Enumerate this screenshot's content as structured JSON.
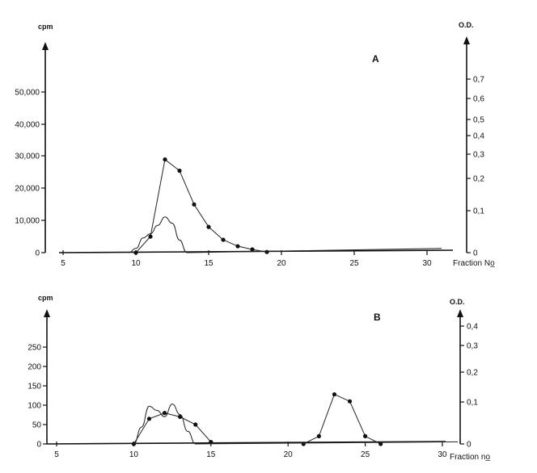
{
  "chart_data": [
    {
      "type": "line",
      "panel_label": "A",
      "xlabel": "Fraction No̲",
      "ylabel_left": "cpm",
      "ylabel_right": "O.D.",
      "xlim": [
        5,
        31
      ],
      "xticks": [
        "5",
        "10",
        "15",
        "20",
        "25",
        "30"
      ],
      "ylim_left": [
        0,
        60000
      ],
      "yticks_left": [
        "0",
        "10,000",
        "20,000",
        "30,000",
        "40,000",
        "50,000"
      ],
      "yticks_right": [
        "0",
        "0,1",
        "0,2",
        "0,3",
        "0,4",
        "0,5",
        "0,6",
        "0,7"
      ],
      "series": [
        {
          "axis": "left",
          "marker": "dot",
          "x": [
            10,
            11,
            12,
            13,
            14,
            15,
            16,
            17,
            18,
            19
          ],
          "y": [
            0,
            5000,
            29000,
            25500,
            15000,
            8000,
            4000,
            2000,
            1000,
            200
          ]
        },
        {
          "axis": "right",
          "marker": "none",
          "x": [
            9.5,
            10,
            10.5,
            11,
            11.5,
            12,
            12.5,
            13,
            13.5
          ],
          "y": [
            0,
            0.01,
            0.035,
            0.045,
            0.065,
            0.085,
            0.07,
            0.03,
            0
          ],
          "tail_to": [
            31,
            0.01
          ]
        }
      ]
    },
    {
      "type": "line",
      "panel_label": "B",
      "xlabel": "Fraction no̲",
      "ylabel_left": "cpm",
      "ylabel_right": "O.D.",
      "xlim": [
        5,
        31
      ],
      "xticks": [
        "5",
        "10",
        "15",
        "20",
        "25",
        "30"
      ],
      "ylim_left": [
        0,
        300
      ],
      "yticks_left": [
        "0",
        "50",
        "100",
        "150",
        "200",
        "250"
      ],
      "yticks_right": [
        "0",
        "0,1",
        "0,2",
        "0,3",
        "0,4"
      ],
      "series": [
        {
          "axis": "left",
          "marker": "dot",
          "x": [
            10,
            11,
            12,
            13,
            14,
            15,
            21,
            22,
            23,
            24,
            25,
            26
          ],
          "y": [
            0,
            65,
            80,
            70,
            50,
            5,
            0,
            20,
            128,
            110,
            20,
            0
          ]
        },
        {
          "axis": "right",
          "marker": "none",
          "x": [
            10,
            10.5,
            11,
            11.5,
            12,
            12.5,
            13,
            13.5,
            14
          ],
          "y": [
            0,
            0.04,
            0.09,
            0.08,
            0.065,
            0.095,
            0.07,
            0.03,
            0
          ],
          "tail_to": [
            31,
            0.005
          ]
        }
      ]
    }
  ]
}
